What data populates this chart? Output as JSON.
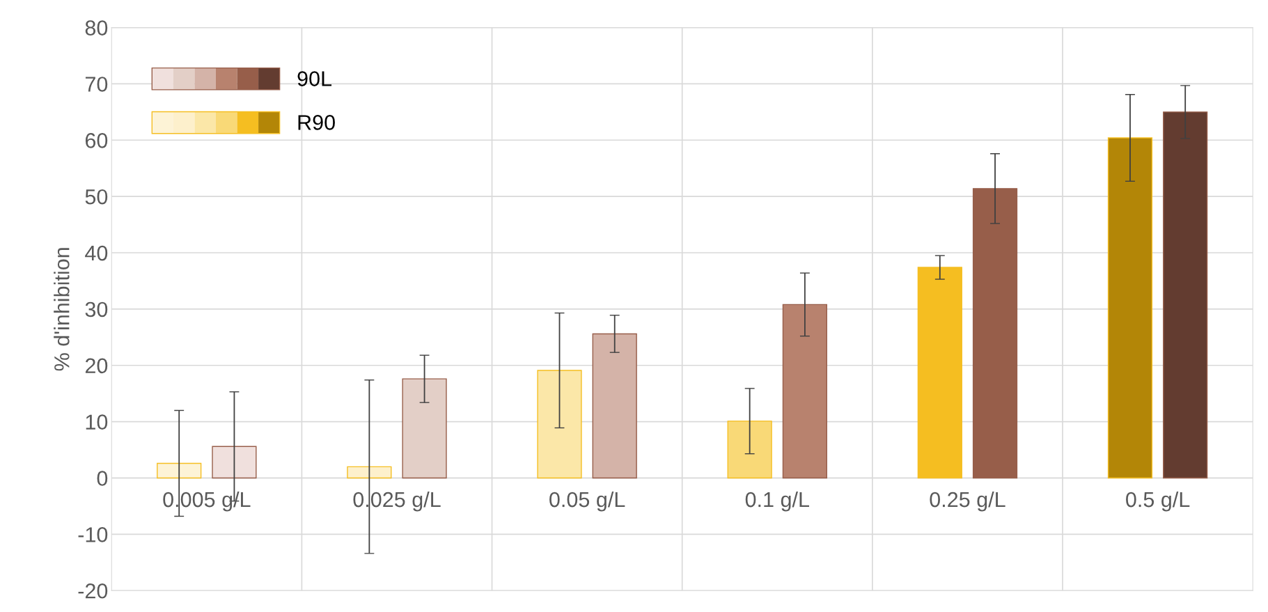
{
  "chart_data": {
    "type": "bar",
    "ylabel": "% d'inhibition",
    "categories": [
      "0.005 g/L",
      "0.025 g/L",
      "0.05 g/L",
      "0.1 g/L",
      "0.25 g/L",
      "0.5 g/L"
    ],
    "series": [
      {
        "name": "R90",
        "color": "#f5be21",
        "colors": [
          "#fdf3d6",
          "#fdf0cc",
          "#fbe7a8",
          "#f9d977",
          "#f5be21",
          "#b38607"
        ],
        "values": [
          2.6,
          2.0,
          19.1,
          10.1,
          37.4,
          60.4
        ],
        "errors": [
          9.4,
          15.4,
          10.2,
          5.8,
          2.1,
          7.7
        ]
      },
      {
        "name": "90L",
        "color": "#975e4a",
        "colors": [
          "#f0e0dd",
          "#e3cfc7",
          "#d4b3a8",
          "#b8826e",
          "#975e4a",
          "#633c30"
        ],
        "values": [
          5.6,
          17.6,
          25.6,
          30.8,
          51.4,
          65.0
        ],
        "errors": [
          9.7,
          4.2,
          3.3,
          5.6,
          6.2,
          4.7
        ]
      }
    ],
    "ylim": [
      -20,
      80
    ],
    "yticks": [
      -20,
      -10,
      0,
      10,
      20,
      30,
      40,
      50,
      60,
      70,
      80
    ],
    "grid": true,
    "legend": "top left"
  }
}
